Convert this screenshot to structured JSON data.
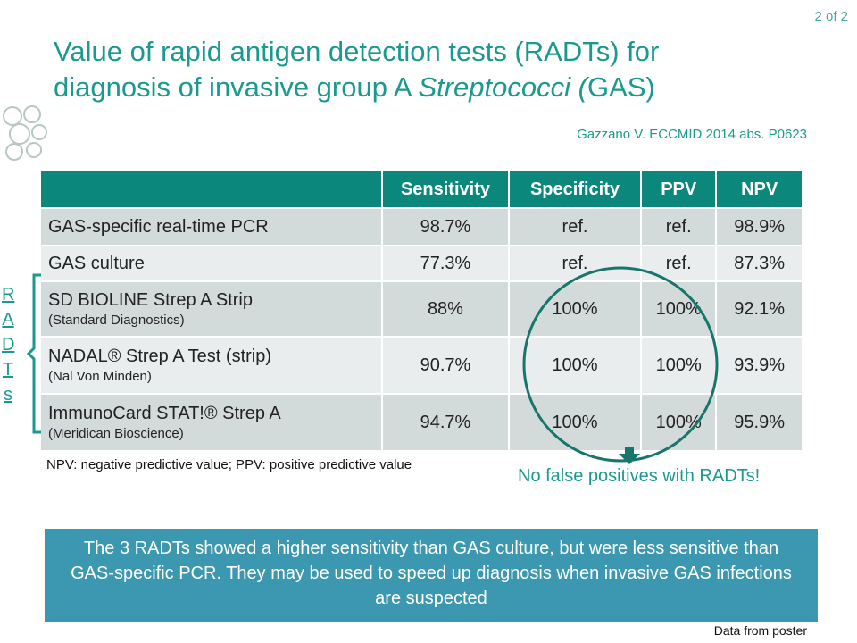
{
  "page_label": "2 of 2",
  "title": {
    "line1": "Value of rapid antigen detection tests (RADTs) for",
    "line2_start": "diagnosis of invasive group A ",
    "line2_italic": "Streptococci (",
    "line2_end": "GAS)"
  },
  "citation": "Gazzano V. ECCMID 2014 abs. P0623",
  "table": {
    "header": [
      "",
      "Sensitivity",
      "Specificity",
      "PPV",
      "NPV"
    ],
    "rows": [
      {
        "name": "GAS-specific real-time PCR",
        "sub": null,
        "cells": [
          "98.7%",
          "ref.",
          "ref.",
          "98.9%"
        ]
      },
      {
        "name": "GAS culture",
        "sub": null,
        "cells": [
          "77.3%",
          "ref.",
          "ref.",
          "87.3%"
        ]
      },
      {
        "name": "SD BIOLINE Strep A Strip",
        "sub": "(Standard Diagnostics)",
        "cells": [
          "88%",
          "100%",
          "100%",
          "92.1%"
        ]
      },
      {
        "name": "NADAL® Strep A Test (strip)",
        "sub": "(Nal Von Minden)",
        "cells": [
          "90.7%",
          "100%",
          "100%",
          "93.9%"
        ]
      },
      {
        "name": "ImmunoCard STAT!® Strep A",
        "sub": "(Meridican Bioscience)",
        "cells": [
          "94.7%",
          "100%",
          "100%",
          "95.9%"
        ]
      }
    ]
  },
  "bracket_label": "RADTs",
  "footnote": "NPV: negative predictive value; PPV: positive predictive value",
  "callout": "No false positives with RADTs!",
  "summary": "The 3 RADTs showed a higher sensitivity than GAS culture, but were less sensitive than GAS-specific PCR. They may be used to speed up diagnosis when invasive GAS infections are suspected",
  "source": "Data from poster"
}
